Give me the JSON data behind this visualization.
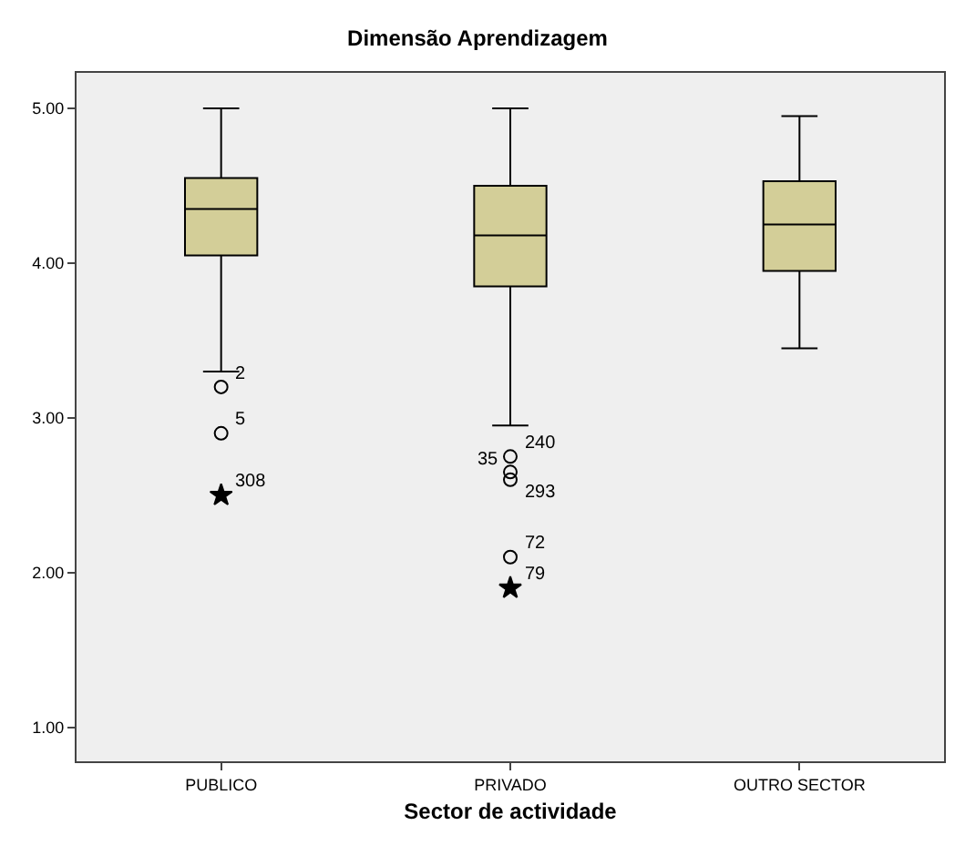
{
  "chart_data": {
    "type": "box",
    "title": "Dimensão Aprendizagem",
    "xlabel": "Sector de actividade",
    "categories": [
      "PUBLICO",
      "PRIVADO",
      "OUTRO SECTOR"
    ],
    "boxes": [
      {
        "low": 3.3,
        "q1": 4.05,
        "median": 4.35,
        "q3": 4.55,
        "high": 5.0
      },
      {
        "low": 2.95,
        "q1": 3.85,
        "median": 4.18,
        "q3": 4.5,
        "high": 5.0
      },
      {
        "low": 3.45,
        "q1": 3.95,
        "median": 4.25,
        "q3": 4.53,
        "high": 4.95
      }
    ],
    "color": "#d3ce98",
    "series": [
      {
        "type": "scatter",
        "marker": "circle",
        "color": "#000000",
        "x": [
          "PUBLICO",
          "PUBLICO",
          "PRIVADO",
          "PRIVADO",
          "PRIVADO",
          "PRIVADO"
        ],
        "values": [
          3.2,
          2.9,
          2.75,
          2.65,
          2.6,
          2.1
        ]
      },
      {
        "type": "scatter",
        "marker": "star",
        "color": "#000000",
        "x": [
          "PUBLICO",
          "PRIVADO"
        ],
        "values": [
          2.5,
          1.9
        ]
      }
    ],
    "annotations": [
      {
        "text": "2",
        "x": "PUBLICO",
        "y": 3.2
      },
      {
        "text": "5",
        "x": "PUBLICO",
        "y": 2.9
      },
      {
        "text": "308",
        "x": "PUBLICO",
        "y": 2.5
      },
      {
        "text": "240",
        "x": "PRIVADO",
        "y": 2.75
      },
      {
        "text": "35",
        "x": "PRIVADO",
        "y": 2.65
      },
      {
        "text": "293",
        "x": "PRIVADO",
        "y": 2.6
      },
      {
        "text": "72",
        "x": "PRIVADO",
        "y": 2.1
      },
      {
        "text": "79",
        "x": "PRIVADO",
        "y": 1.9
      }
    ],
    "ylim": [
      0.78,
      5.23
    ],
    "yticks": [
      {
        "value": 1,
        "label": "1.00"
      },
      {
        "value": 2,
        "label": "2.00"
      },
      {
        "value": 3,
        "label": "3.00"
      },
      {
        "value": 4,
        "label": "4.00"
      },
      {
        "value": 5,
        "label": "5.00"
      }
    ],
    "grid": false
  }
}
